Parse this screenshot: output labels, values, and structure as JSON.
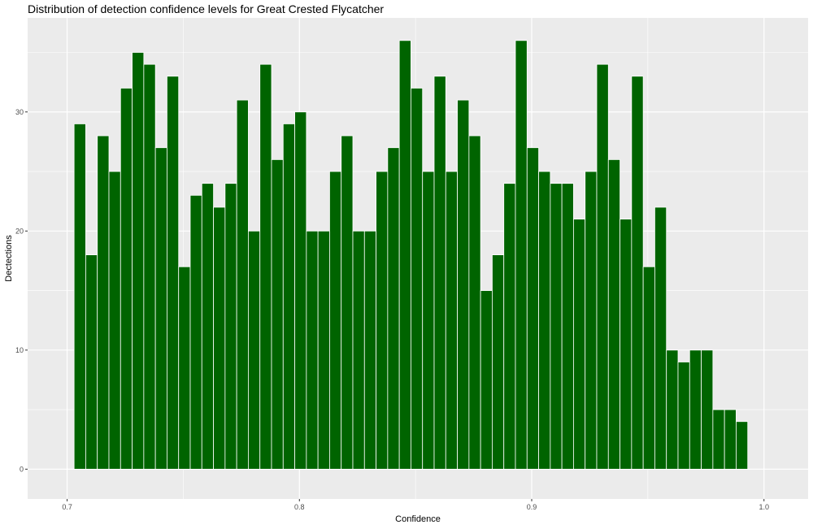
{
  "chart_data": {
    "type": "bar",
    "title": "Distribution of detection confidence levels for Great Crested Flycatcher",
    "xlabel": "Confidence",
    "ylabel": "Dectections",
    "xlim": [
      0.683,
      1.019
    ],
    "ylim": [
      -2.5,
      37.9
    ],
    "x_ticks": [
      0.7,
      0.8,
      0.9,
      1.0
    ],
    "x_tick_labels": [
      "0.7",
      "0.8",
      "0.9",
      "1.0"
    ],
    "y_ticks": [
      0,
      10,
      20,
      30
    ],
    "y_tick_labels": [
      "0",
      "10",
      "20",
      "30"
    ],
    "grid": true,
    "legend": "none",
    "bin_width": 0.005,
    "bin_start": 0.703,
    "values": [
      29,
      18,
      28,
      25,
      32,
      35,
      34,
      27,
      33,
      17,
      23,
      24,
      22,
      24,
      31,
      20,
      34,
      26,
      29,
      30,
      20,
      20,
      25,
      28,
      20,
      20,
      25,
      27,
      36,
      32,
      25,
      33,
      25,
      31,
      28,
      15,
      18,
      24,
      36,
      27,
      25,
      24,
      24,
      21,
      25,
      34,
      26,
      21,
      33,
      17,
      22,
      10,
      9,
      10,
      10,
      5,
      5,
      4
    ],
    "colors": {
      "bar_fill": "#006400",
      "bar_outline": "#ffffff",
      "panel": "#ebebeb",
      "grid": "#ffffff"
    }
  }
}
